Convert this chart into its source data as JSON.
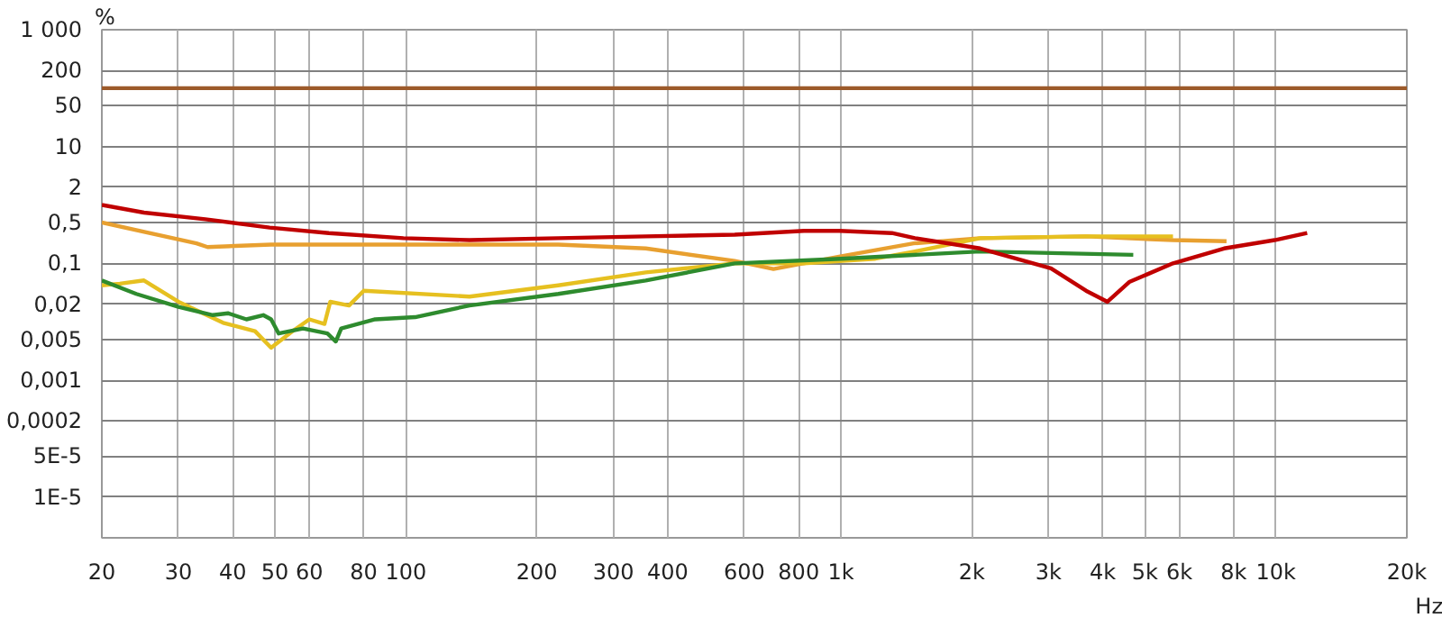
{
  "chart_data": {
    "type": "line",
    "ylabel": "%",
    "log": "xy",
    "grid": true,
    "marker": "none",
    "line_style": "solid",
    "xlim": [
      20,
      20000
    ],
    "ylim": [
      2e-06,
      1000
    ],
    "xticks": [
      20,
      30,
      40,
      50,
      60,
      80,
      100,
      200,
      300,
      400,
      600,
      800,
      {
        "value": 1000,
        "label": "1k"
      },
      {
        "value": 2000,
        "label": "2k"
      },
      {
        "value": 3000,
        "label": "3k"
      },
      {
        "value": 4000,
        "label": "4k"
      },
      {
        "value": 5000,
        "label": "5k"
      },
      {
        "value": 6000,
        "label": "6k"
      },
      {
        "value": 8000,
        "label": "8k"
      },
      {
        "value": 10000,
        "label": "10k"
      },
      {
        "value": 20000,
        "label": "20k"
      }
    ],
    "xlabel": "Hz",
    "yticks": [
      {
        "value": 1000,
        "label": "1 000"
      },
      200,
      50,
      10,
      2,
      {
        "value": 0.5,
        "label": "0,5"
      },
      {
        "value": 0.1,
        "label": "0,1"
      },
      {
        "value": 0.02,
        "label": "0,02"
      },
      {
        "value": 0.005,
        "label": "0,005"
      },
      {
        "value": 0.001,
        "label": "0,001"
      },
      {
        "value": 0.0002,
        "label": "0,0002"
      },
      {
        "value": 5e-05,
        "label": "5E-5"
      },
      {
        "value": 1e-05,
        "label": "1E-5"
      }
    ],
    "series": [
      {
        "color": "#9c5a2a",
        "x": [
          20,
          20000
        ],
        "values": [
          100,
          100
        ]
      },
      {
        "color": "#e8a030",
        "x": [
          20,
          33,
          35,
          49,
          99,
          224,
          356,
          570,
          700,
          990,
          1470,
          2090,
          3660,
          5800,
          7700
        ],
        "values": [
          0.5,
          0.22,
          0.19,
          0.21,
          0.21,
          0.21,
          0.18,
          0.11,
          0.08,
          0.13,
          0.22,
          0.27,
          0.29,
          0.25,
          0.24
        ]
      },
      {
        "color": "#e6c020",
        "x": [
          20,
          22,
          25,
          30,
          38,
          45,
          49,
          55,
          60,
          65,
          67,
          74,
          80,
          140,
          224,
          356,
          570,
          822,
          1200,
          1480,
          2090,
          3660,
          5800
        ],
        "values": [
          0.042,
          0.045,
          0.051,
          0.022,
          0.0096,
          0.0069,
          0.0036,
          0.007,
          0.011,
          0.0092,
          0.022,
          0.019,
          0.034,
          0.027,
          0.042,
          0.07,
          0.1,
          0.1,
          0.12,
          0.16,
          0.27,
          0.29,
          0.29
        ]
      },
      {
        "color": "#2e8b2e",
        "x": [
          20,
          24,
          30,
          36,
          39,
          43,
          47,
          49,
          51,
          58,
          66,
          69,
          71,
          85,
          105,
          140,
          224,
          356,
          570,
          1000,
          2090,
          4700
        ],
        "values": [
          0.051,
          0.03,
          0.018,
          0.013,
          0.014,
          0.011,
          0.013,
          0.011,
          0.0063,
          0.0077,
          0.0063,
          0.0046,
          0.0077,
          0.011,
          0.012,
          0.019,
          0.03,
          0.051,
          0.1,
          0.12,
          0.16,
          0.14
        ]
      },
      {
        "color": "#c00000",
        "x": [
          20,
          25,
          34.6,
          48.6,
          66.5,
          98.7,
          140,
          224,
          356,
          570,
          822,
          992,
          1310,
          1480,
          2090,
          3040,
          3660,
          4100,
          4600,
          5800,
          7600,
          9930,
          11800
        ],
        "values": [
          1.0,
          0.74,
          0.57,
          0.41,
          0.33,
          0.27,
          0.25,
          0.27,
          0.29,
          0.31,
          0.36,
          0.36,
          0.33,
          0.27,
          0.18,
          0.082,
          0.034,
          0.022,
          0.048,
          0.1,
          0.18,
          0.25,
          0.33
        ]
      }
    ]
  }
}
